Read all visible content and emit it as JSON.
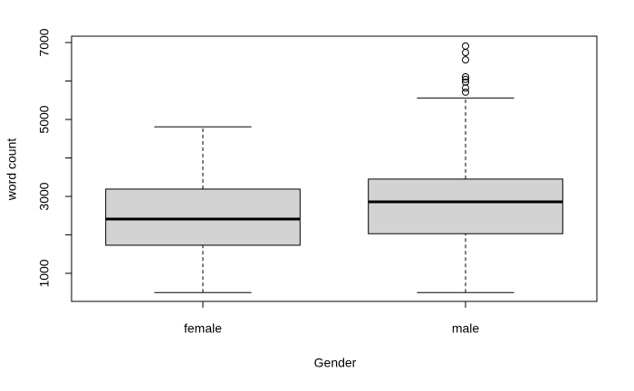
{
  "chart_data": {
    "type": "box",
    "x_label": "Gender",
    "y_label": "word count",
    "categories": [
      "female",
      "male"
    ],
    "boxes": [
      {
        "min": 500,
        "q1": 1730,
        "median": 2410,
        "q3": 3190,
        "max": 4810,
        "outliers": []
      },
      {
        "min": 500,
        "q1": 2030,
        "median": 2860,
        "q3": 3450,
        "max": 5560,
        "outliers": [
          6910,
          6740,
          6550,
          6110,
          6040,
          5970,
          5820,
          5710
        ]
      }
    ],
    "color": "#d3d3d3",
    "ylim": [
      270,
      7165
    ],
    "yticks": [
      1000,
      {
        "value": 2000,
        "label": null
      },
      3000,
      {
        "value": 4000,
        "label": null
      },
      5000,
      {
        "value": 6000,
        "label": null
      },
      7000
    ]
  }
}
